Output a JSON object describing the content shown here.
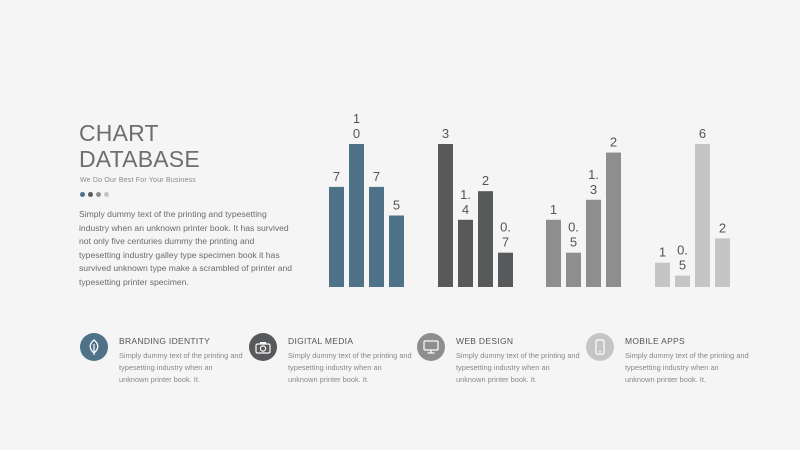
{
  "header": {
    "title_line1": "CHART",
    "title_line2": "DATABASE",
    "subtitle": "We Do Our Best For Your Business",
    "body": "Simply dummy text of the printing and typesetting industry when an unknown printer book. It has survived not only five centuries dummy the printing and typesetting industry galley type specimen book it has survived unknown type make a scrambled of printer and typesetting printer specimen."
  },
  "dots_colors": [
    "#4f7288",
    "#58595b",
    "#8e8e8e",
    "#c5c5c5"
  ],
  "chart_data": {
    "type": "bar",
    "ylim": [
      0,
      10
    ],
    "grid": false,
    "groups": [
      {
        "values": [
          7,
          10,
          7,
          5
        ],
        "labels": [
          "7",
          "1\n0",
          "7",
          "5"
        ],
        "color": "#4f7288"
      },
      {
        "values": [
          10,
          4.7,
          6.7,
          2.4
        ],
        "labels": [
          "3",
          "1.\n4",
          "2",
          "0.\n7"
        ],
        "color": "#58595b"
      },
      {
        "values": [
          4.7,
          2.4,
          6.1,
          9.4
        ],
        "labels": [
          "1",
          "0.\n5",
          "1.\n3",
          "2"
        ],
        "color": "#8e8e8e"
      },
      {
        "values": [
          1.7,
          0.8,
          10,
          3.4
        ],
        "labels": [
          "1",
          "0.\n5",
          "6",
          "2"
        ],
        "color": "#c5c5c5"
      }
    ]
  },
  "features": [
    {
      "title": "BRANDING IDENTITY",
      "text": "Simply dummy text of the printing and typesetting industry when an unknown printer book. It.",
      "color": "#4f7288",
      "icon": "leaf-icon"
    },
    {
      "title": "DIGITAL MEDIA",
      "text": "Simply dummy text of the printing and typesetting industry when an unknown printer book. It.",
      "color": "#58595b",
      "icon": "camera-icon"
    },
    {
      "title": "WEB DESIGN",
      "text": "Simply dummy text of the printing and typesetting industry when an unknown printer book. It.",
      "color": "#8e8e8e",
      "icon": "monitor-icon"
    },
    {
      "title": "MOBILE APPS",
      "text": "Simply dummy text of the printing and typesetting industry when an unknown printer book. It.",
      "color": "#c5c5c5",
      "icon": "mobile-phone-icon"
    }
  ]
}
